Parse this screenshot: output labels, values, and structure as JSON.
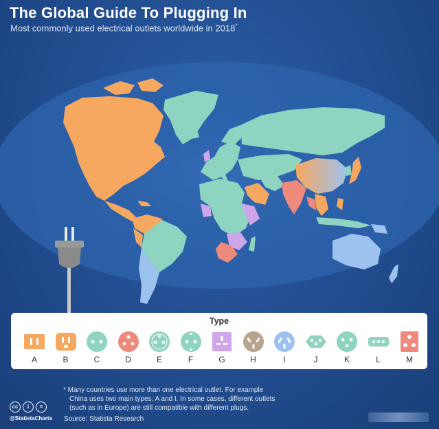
{
  "header": {
    "title": "The Global Guide To Plugging In",
    "subtitle": "Most commonly used electrical outlets worldwide in 2018",
    "subtitle_mark": "*"
  },
  "colors": {
    "A": "#f7a860",
    "B": "#f7a860",
    "C": "#8fd4c1",
    "D": "#ee8a7b",
    "E": "#8fd4c1",
    "F": "#8fd4c1",
    "G": "#d0a6ea",
    "H": "#b8a38d",
    "I": "#9ec2ef",
    "J": "#8fd4c1",
    "K": "#8fd4c1",
    "L": "#8fd4c1",
    "M": "#ee8a7b",
    "land_default": "#8fd4c1",
    "ocean": "#2c5fa6"
  },
  "legend": {
    "title": "Type",
    "items": [
      {
        "label": "A",
        "color": "#f7a860",
        "icon": "outlet-type-a-icon"
      },
      {
        "label": "B",
        "color": "#f7a860",
        "icon": "outlet-type-b-icon"
      },
      {
        "label": "C",
        "color": "#8fd4c1",
        "icon": "outlet-type-c-icon"
      },
      {
        "label": "D",
        "color": "#ee8a7b",
        "icon": "outlet-type-d-icon"
      },
      {
        "label": "E",
        "color": "#8fd4c1",
        "icon": "outlet-type-e-icon"
      },
      {
        "label": "F",
        "color": "#8fd4c1",
        "icon": "outlet-type-f-icon"
      },
      {
        "label": "G",
        "color": "#d0a6ea",
        "icon": "outlet-type-g-icon"
      },
      {
        "label": "H",
        "color": "#b8a38d",
        "icon": "outlet-type-h-icon"
      },
      {
        "label": "I",
        "color": "#9ec2ef",
        "icon": "outlet-type-i-icon"
      },
      {
        "label": "J",
        "color": "#8fd4c1",
        "icon": "outlet-type-j-icon"
      },
      {
        "label": "K",
        "color": "#8fd4c1",
        "icon": "outlet-type-k-icon"
      },
      {
        "label": "L",
        "color": "#8fd4c1",
        "icon": "outlet-type-l-icon"
      },
      {
        "label": "M",
        "color": "#ee8a7b",
        "icon": "outlet-type-m-icon"
      }
    ]
  },
  "footnote": {
    "line1": "* Many countries use more than one electrical outlet. For example",
    "line2": "China uses two main types:  A and I. In some cases, different outlets",
    "line3": "(such as in Europe) are still compatible with different plugs."
  },
  "footer": {
    "cc_icons": [
      "cc",
      "i",
      "="
    ],
    "handle": "@StatistaCharts",
    "source": "Source: Statista Research"
  },
  "decorations": {
    "plug": "plug-icon",
    "logo": "statista-logo"
  }
}
